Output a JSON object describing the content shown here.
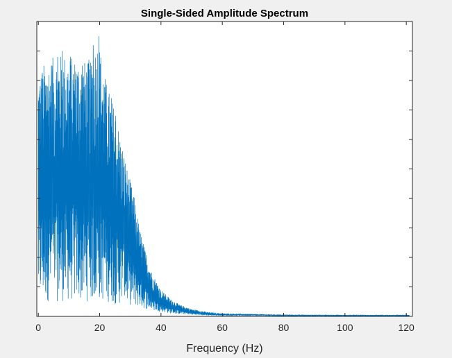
{
  "chart_data": {
    "type": "line",
    "title": "Single-Sided Amplitude Spectrum",
    "xlabel": "Frequency (Hz)",
    "ylabel": "",
    "xlim": [
      -0.5,
      122
    ],
    "ylim": [
      0,
      1
    ],
    "x_ticks": [
      0,
      20,
      40,
      60,
      80,
      100,
      120
    ],
    "x_tick_labels": [
      "0",
      "20",
      "40",
      "60",
      "80",
      "100",
      "120"
    ],
    "y_ticks": [
      0.1,
      0.2,
      0.3,
      0.4,
      0.5,
      0.6,
      0.7,
      0.8,
      0.9
    ],
    "y_tick_labels_visible": false,
    "grid": false,
    "box": true,
    "series": [
      {
        "color": "#0072bd",
        "envelope": {
          "x": [
            0,
            2,
            5,
            8,
            11,
            14,
            17,
            19.5,
            22,
            25,
            27,
            29,
            31,
            33,
            35,
            37,
            40,
            43,
            46,
            50,
            55,
            60,
            70,
            80,
            100,
            121
          ],
          "peak": [
            0.82,
            0.86,
            0.88,
            0.89,
            0.88,
            0.87,
            0.86,
            0.95,
            0.8,
            0.7,
            0.6,
            0.5,
            0.42,
            0.3,
            0.22,
            0.15,
            0.09,
            0.06,
            0.04,
            0.025,
            0.015,
            0.01,
            0.008,
            0.006,
            0.005,
            0.005
          ],
          "floor": [
            0.05,
            0.05,
            0.05,
            0.05,
            0.05,
            0.05,
            0.05,
            0.05,
            0.05,
            0.04,
            0.04,
            0.04,
            0.035,
            0.03,
            0.025,
            0.02,
            0.015,
            0.01,
            0.008,
            0.005,
            0.003,
            0.002,
            0.002,
            0.001,
            0.001,
            0.001
          ]
        },
        "peaks": [
          {
            "x": 1.2,
            "y": 0.82
          },
          {
            "x": 3.1,
            "y": 0.78
          },
          {
            "x": 4.5,
            "y": 0.85
          },
          {
            "x": 6.3,
            "y": 0.88
          },
          {
            "x": 7.8,
            "y": 0.9
          },
          {
            "x": 10.5,
            "y": 0.88
          },
          {
            "x": 12.0,
            "y": 0.83
          },
          {
            "x": 14.3,
            "y": 0.85
          },
          {
            "x": 16.5,
            "y": 0.87
          },
          {
            "x": 17.9,
            "y": 0.92
          },
          {
            "x": 19.7,
            "y": 0.95
          },
          {
            "x": 21.5,
            "y": 0.72
          },
          {
            "x": 23.8,
            "y": 0.74
          },
          {
            "x": 25.2,
            "y": 0.68
          },
          {
            "x": 27.9,
            "y": 0.53
          }
        ]
      }
    ]
  }
}
